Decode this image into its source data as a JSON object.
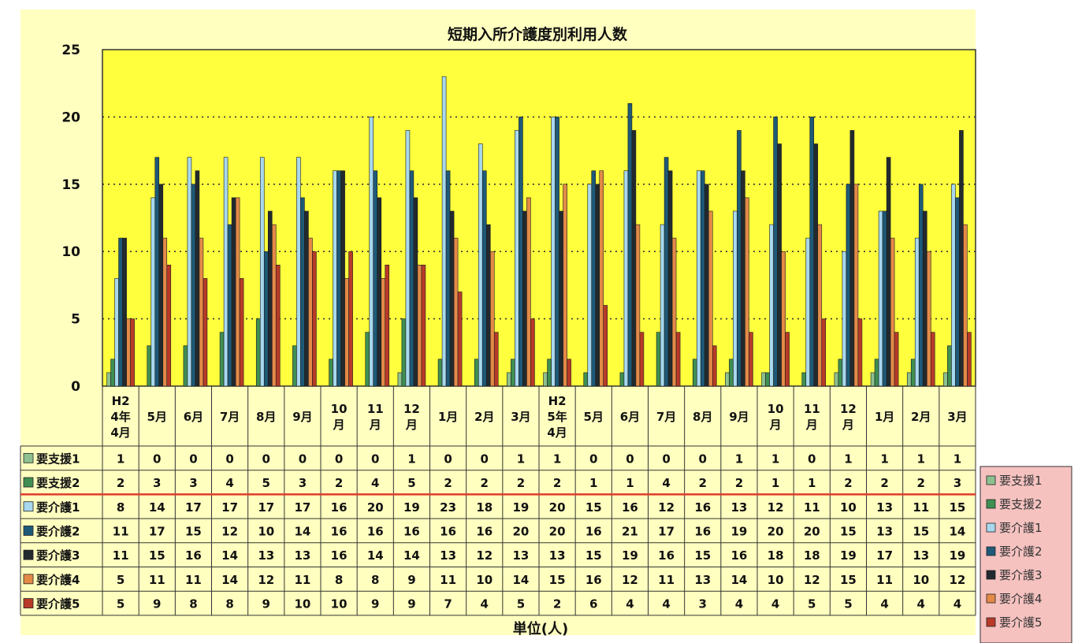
{
  "chart_data": {
    "type": "bar",
    "title": "短期入所介護度別利用人数",
    "unit_label": "単位(人)",
    "ylim": [
      0,
      25
    ],
    "yticks": [
      0,
      5,
      10,
      15,
      20,
      25
    ],
    "grid": "dotted horizontal",
    "legend_position": "right",
    "categories": [
      [
        "H2",
        "4年",
        "4月"
      ],
      [
        "5月"
      ],
      [
        "6月"
      ],
      [
        "7月"
      ],
      [
        "8月"
      ],
      [
        "9月"
      ],
      [
        "10",
        "月"
      ],
      [
        "11",
        "月"
      ],
      [
        "12",
        "月"
      ],
      [
        "1月"
      ],
      [
        "2月"
      ],
      [
        "3月"
      ],
      [
        "H2",
        "5年",
        "4月"
      ],
      [
        "5月"
      ],
      [
        "6月"
      ],
      [
        "7月"
      ],
      [
        "8月"
      ],
      [
        "9月"
      ],
      [
        "10",
        "月"
      ],
      [
        "11",
        "月"
      ],
      [
        "12",
        "月"
      ],
      [
        "1月"
      ],
      [
        "2月"
      ],
      [
        "3月"
      ]
    ],
    "series": [
      {
        "name": "要支援1",
        "color": "#8dc090",
        "values": [
          1,
          0,
          0,
          0,
          0,
          0,
          0,
          0,
          1,
          0,
          0,
          1,
          1,
          0,
          0,
          0,
          0,
          1,
          1,
          0,
          1,
          1,
          1,
          1
        ]
      },
      {
        "name": "要支援2",
        "color": "#3f8f52",
        "values": [
          2,
          3,
          3,
          4,
          5,
          3,
          2,
          4,
          5,
          2,
          2,
          2,
          2,
          1,
          1,
          4,
          2,
          2,
          1,
          1,
          2,
          2,
          2,
          3
        ]
      },
      {
        "name": "要介護1",
        "color": "#a8d8ee",
        "values": [
          8,
          14,
          17,
          17,
          17,
          17,
          16,
          20,
          19,
          23,
          18,
          19,
          20,
          15,
          16,
          12,
          16,
          13,
          12,
          11,
          10,
          13,
          11,
          15
        ]
      },
      {
        "name": "要介護2",
        "color": "#1e5a78",
        "values": [
          11,
          17,
          15,
          12,
          10,
          14,
          16,
          16,
          16,
          16,
          16,
          20,
          20,
          16,
          21,
          17,
          16,
          19,
          20,
          20,
          15,
          13,
          15,
          14
        ]
      },
      {
        "name": "要介護3",
        "color": "#232a2e",
        "values": [
          11,
          15,
          16,
          14,
          13,
          13,
          16,
          14,
          14,
          13,
          12,
          13,
          13,
          15,
          19,
          16,
          15,
          16,
          18,
          18,
          19,
          17,
          13,
          19
        ]
      },
      {
        "name": "要介護4",
        "color": "#e38a48",
        "values": [
          5,
          11,
          11,
          14,
          12,
          11,
          8,
          8,
          9,
          11,
          10,
          14,
          15,
          16,
          12,
          11,
          13,
          14,
          10,
          12,
          15,
          11,
          10,
          12
        ]
      },
      {
        "name": "要介護5",
        "color": "#b83a28",
        "values": [
          5,
          9,
          8,
          8,
          9,
          10,
          10,
          9,
          9,
          7,
          4,
          5,
          2,
          6,
          4,
          4,
          3,
          4,
          4,
          5,
          5,
          4,
          4,
          4
        ]
      }
    ]
  }
}
